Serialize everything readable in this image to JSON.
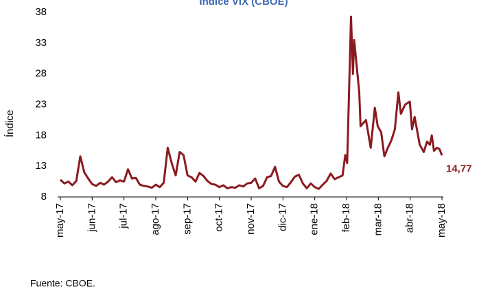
{
  "chart_data": {
    "type": "line",
    "title": "Índice VIX (CBOE)",
    "ylabel": "Índice",
    "source": "Fuente: CBOE.",
    "annotation": "14,77",
    "color": "#8b1a1f",
    "title_color": "#3c68b1",
    "x": [
      0,
      0.125,
      0.25,
      0.375,
      0.5,
      0.625,
      0.75,
      0.875,
      1,
      1.125,
      1.25,
      1.375,
      1.5,
      1.625,
      1.75,
      1.875,
      2,
      2.125,
      2.25,
      2.375,
      2.5,
      2.625,
      2.75,
      2.875,
      3,
      3.125,
      3.25,
      3.375,
      3.5,
      3.625,
      3.75,
      3.875,
      4,
      4.125,
      4.25,
      4.375,
      4.5,
      4.625,
      4.75,
      4.875,
      5,
      5.125,
      5.25,
      5.375,
      5.5,
      5.625,
      5.75,
      5.875,
      6,
      6.125,
      6.25,
      6.375,
      6.5,
      6.625,
      6.75,
      6.875,
      7,
      7.125,
      7.25,
      7.375,
      7.5,
      7.625,
      7.75,
      7.875,
      8,
      8.125,
      8.25,
      8.375,
      8.5,
      8.625,
      8.75,
      8.875,
      8.96,
      9.02,
      9.14,
      9.2,
      9.24,
      9.4,
      9.44,
      9.61,
      9.76,
      9.89,
      9.98,
      10.09,
      10.19,
      10.3,
      10.41,
      10.52,
      10.63,
      10.71,
      10.84,
      10.99,
      11.06,
      11.14,
      11.3,
      11.43,
      11.53,
      11.62,
      11.68,
      11.75,
      11.84,
      11.92,
      12
    ],
    "values": [
      10.8,
      10.2,
      10.5,
      9.9,
      10.6,
      14.6,
      12.0,
      11.0,
      10.1,
      9.8,
      10.3,
      10.0,
      10.5,
      11.2,
      10.4,
      10.7,
      10.5,
      12.5,
      11.0,
      11.1,
      10.0,
      9.8,
      9.7,
      9.5,
      10.0,
      9.6,
      10.3,
      16.0,
      13.5,
      11.5,
      15.3,
      14.8,
      11.5,
      11.2,
      10.5,
      11.9,
      11.4,
      10.6,
      10.1,
      10.0,
      9.6,
      9.9,
      9.4,
      9.6,
      9.5,
      9.9,
      9.7,
      10.2,
      10.3,
      11.0,
      9.4,
      9.8,
      11.2,
      11.4,
      12.9,
      10.5,
      9.8,
      9.6,
      10.4,
      11.3,
      11.6,
      10.2,
      9.4,
      10.2,
      9.6,
      9.3,
      10.0,
      10.6,
      11.8,
      10.9,
      11.2,
      11.5,
      14.8,
      13.5,
      37.3,
      28,
      33.5,
      25,
      19.5,
      20.5,
      16.0,
      22.5,
      19.5,
      18.5,
      14.6,
      16.0,
      17.2,
      19.0,
      25.0,
      21.5,
      23.0,
      23.5,
      19.0,
      21.0,
      16.5,
      15.3,
      17.0,
      16.5,
      18.0,
      15.5,
      16.0,
      15.8,
      14.77
    ],
    "xlim": [
      0,
      12
    ],
    "xticks": [
      {
        "value": 0,
        "label": "may-17"
      },
      {
        "value": 1,
        "label": "jun-17"
      },
      {
        "value": 2,
        "label": "jul-17"
      },
      {
        "value": 3,
        "label": "ago-17"
      },
      {
        "value": 4,
        "label": "sep-17"
      },
      {
        "value": 5,
        "label": "oct-17"
      },
      {
        "value": 6,
        "label": "nov-17"
      },
      {
        "value": 7,
        "label": "dic-17"
      },
      {
        "value": 8,
        "label": "ene-18"
      },
      {
        "value": 9,
        "label": "feb-18"
      },
      {
        "value": 10,
        "label": "mar-18"
      },
      {
        "value": 11,
        "label": "abr-18"
      },
      {
        "value": 12,
        "label": "may-18"
      }
    ],
    "ylim": [
      8,
      38
    ],
    "yticks": [
      8,
      13,
      18,
      23,
      28,
      33,
      38
    ]
  }
}
